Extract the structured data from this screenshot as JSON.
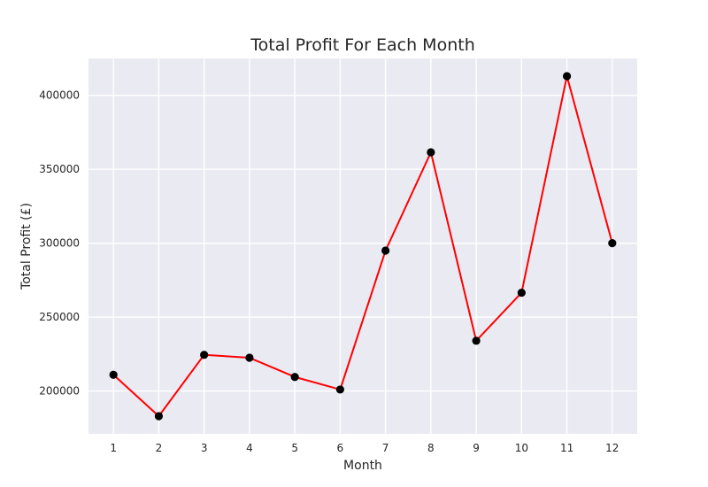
{
  "chart_data": {
    "type": "line",
    "title": "Total Profit For Each Month",
    "xlabel": "Month",
    "ylabel": "Total Profit (£)",
    "x": [
      1,
      2,
      3,
      4,
      5,
      6,
      7,
      8,
      9,
      10,
      11,
      12
    ],
    "xticks": [
      "1",
      "2",
      "3",
      "4",
      "5",
      "6",
      "7",
      "8",
      "9",
      "10",
      "11",
      "12"
    ],
    "xlim": [
      0.45,
      12.55
    ],
    "yticks": [
      200000,
      250000,
      300000,
      350000,
      400000
    ],
    "ytick_labels": [
      "200000",
      "250000",
      "300000",
      "350000",
      "400000"
    ],
    "ylim": [
      171000,
      425000
    ],
    "grid": true,
    "colors": {
      "background": "#eaeaf2",
      "grid": "#ffffff",
      "line": "#ff0000",
      "marker": "#000000"
    },
    "series": [
      {
        "values": [
          211000,
          183000,
          224500,
          222500,
          209500,
          201000,
          295000,
          361500,
          234000,
          266500,
          413000,
          300000
        ]
      }
    ]
  }
}
